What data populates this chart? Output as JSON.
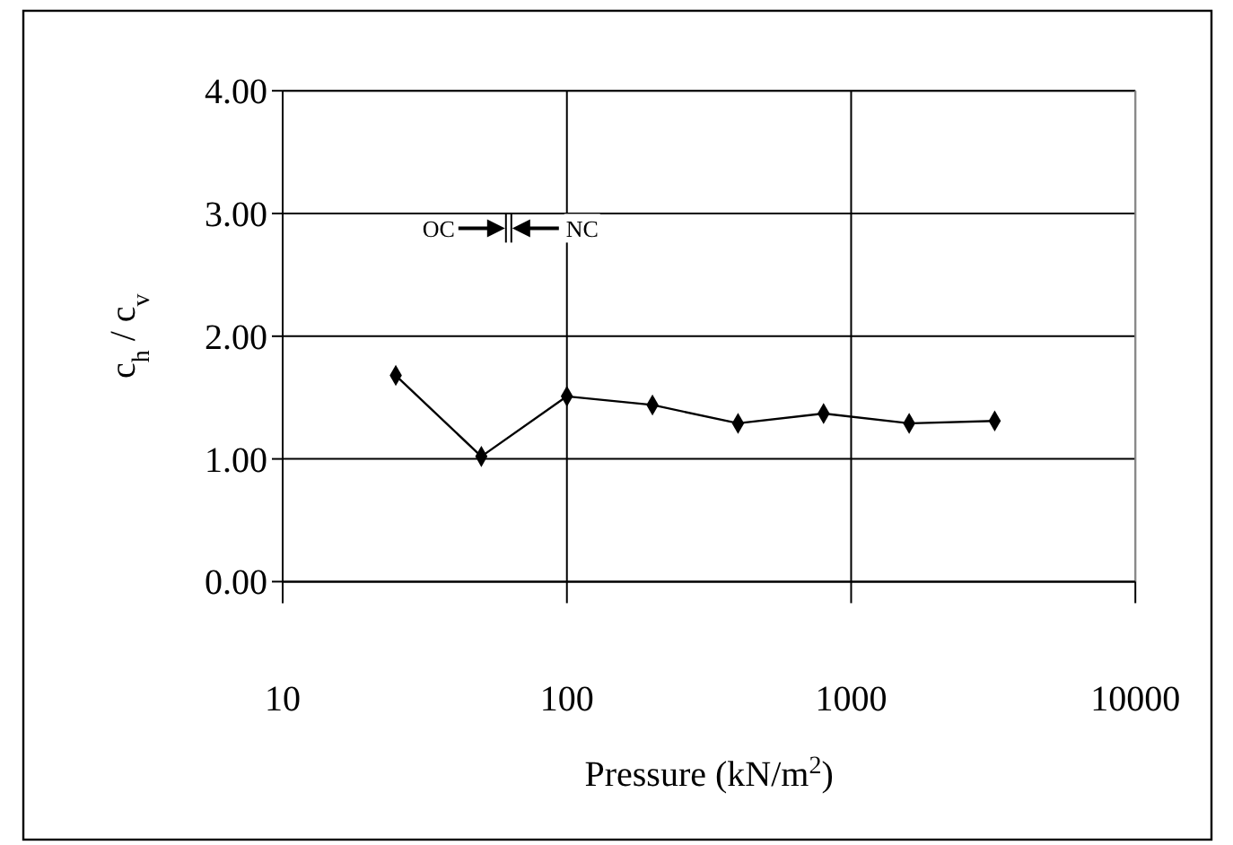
{
  "chart_data": {
    "type": "line",
    "xlabel": "Pressure (kN/m$^{2}$)",
    "ylabel": "c$_{h}$ / c$_{v}$",
    "x": [
      25,
      50,
      100,
      200,
      400,
      800,
      1600,
      3200
    ],
    "series": [
      {
        "color": "#000000",
        "values": [
          1.68,
          1.02,
          1.51,
          1.44,
          1.29,
          1.37,
          1.29,
          1.31
        ]
      }
    ],
    "log": "x",
    "xlim": [
      10,
      10000
    ],
    "xticks": [
      10,
      100,
      1000,
      10000
    ],
    "ylim": [
      0,
      4
    ],
    "yticks": [
      {
        "value": 0,
        "label": "0.00"
      },
      {
        "value": 1,
        "label": "1.00"
      },
      {
        "value": 2,
        "label": "2.00"
      },
      {
        "value": 3,
        "label": "3.00"
      },
      {
        "value": 4,
        "label": "4.00"
      }
    ],
    "grid": true,
    "marker": "diamond",
    "line_style": "solid",
    "annotations": [
      "OC",
      "NC"
    ]
  }
}
